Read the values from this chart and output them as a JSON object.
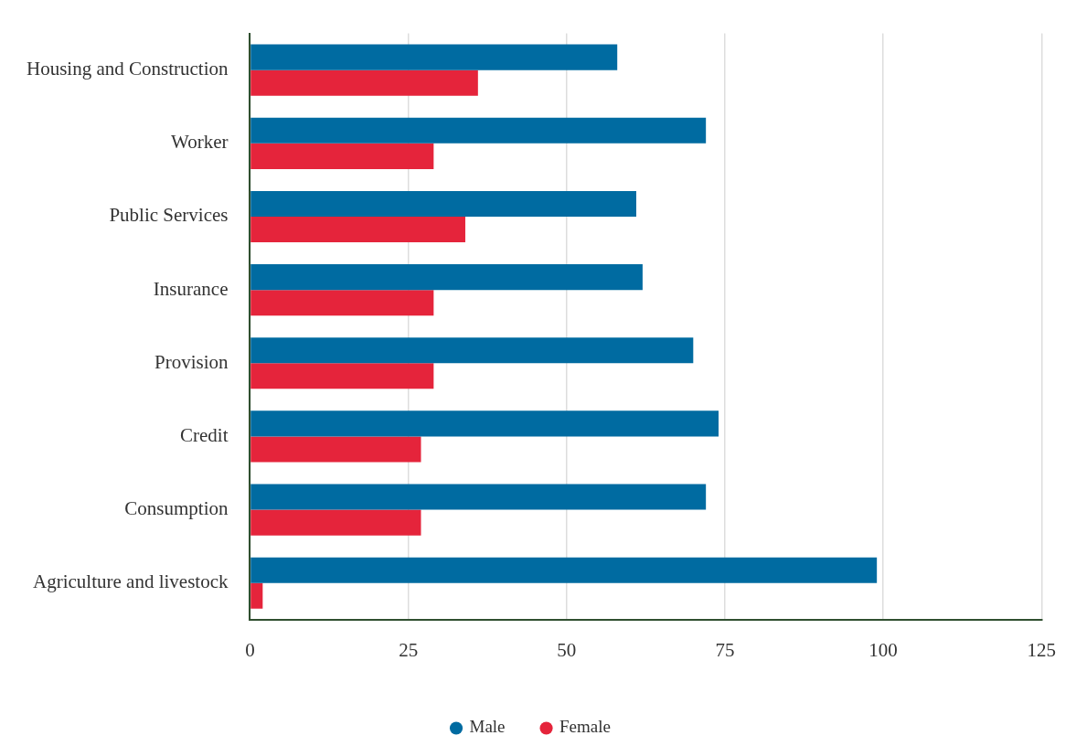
{
  "chart_data": {
    "type": "bar",
    "orientation": "horizontal",
    "categories": [
      "Housing and Construction",
      "Worker",
      "Public Services",
      "Insurance",
      "Provision",
      "Credit",
      "Consumption",
      "Agriculture and livestock"
    ],
    "series": [
      {
        "name": "Male",
        "color": "#006ba1",
        "values": [
          58,
          72,
          61,
          62,
          70,
          74,
          72,
          99
        ]
      },
      {
        "name": "Female",
        "color": "#e5243b",
        "values": [
          36,
          29,
          34,
          29,
          29,
          27,
          27,
          2
        ]
      }
    ],
    "xlim": [
      0,
      125
    ],
    "xticks": [
      0,
      25,
      50,
      75,
      100,
      125
    ],
    "grid": "x",
    "legend": "bottom"
  }
}
